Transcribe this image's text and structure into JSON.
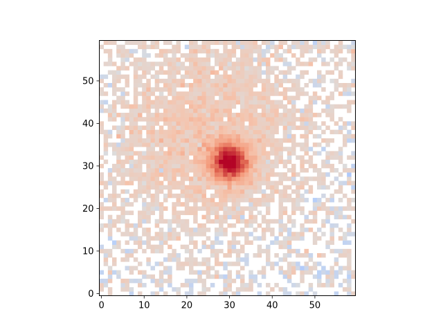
{
  "chart_data": {
    "type": "heatmap",
    "title": "",
    "xlabel": "",
    "ylabel": "",
    "grid_shape": [
      60,
      60
    ],
    "xlim": [
      -0.5,
      59.5
    ],
    "ylim": [
      -0.5,
      59.5
    ],
    "origin": "lower",
    "colormap": "coolwarm",
    "x_ticks": [
      0,
      10,
      20,
      30,
      40,
      50
    ],
    "y_ticks": [
      0,
      10,
      20,
      30,
      40,
      50
    ],
    "x_tick_labels": [
      "0",
      "10",
      "20",
      "30",
      "40",
      "50"
    ],
    "y_tick_labels": [
      "0",
      "10",
      "20",
      "30",
      "40",
      "50"
    ],
    "peak": {
      "x": 30,
      "y": 31,
      "sigma": 3.0
    },
    "halo": {
      "x": 25,
      "y": 38,
      "sigma": 16
    },
    "colors": {
      "peak": "#b40426",
      "warm": "#f4987a",
      "neutral": "#dddcdc",
      "cool": "#7b9ff9",
      "deep_cool": "#3b4cc0"
    }
  }
}
